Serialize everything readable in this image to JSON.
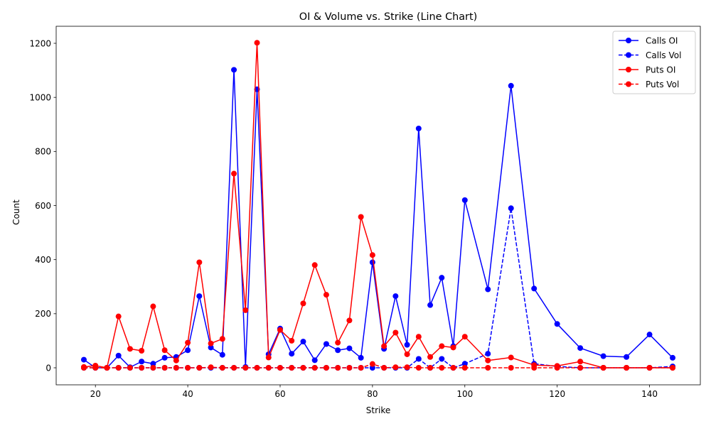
{
  "chart_data": {
    "type": "line",
    "title": "OI & Volume vs. Strike (Line Chart)",
    "xlabel": "Strike",
    "ylabel": "Count",
    "xlim": [
      11.5,
      151
    ],
    "ylim": [
      -63,
      1263
    ],
    "xticks": [
      20,
      40,
      60,
      80,
      100,
      120,
      140
    ],
    "yticks": [
      0,
      200,
      400,
      600,
      800,
      1000,
      1200
    ],
    "grid": false,
    "legend_position": "top-right",
    "x": [
      17.5,
      20,
      22.5,
      25,
      27.5,
      30,
      32.5,
      35,
      37.5,
      40,
      42.5,
      45,
      47.5,
      50,
      52.5,
      55,
      57.5,
      60,
      62.5,
      65,
      67.5,
      70,
      72.5,
      75,
      77.5,
      80,
      82.5,
      85,
      87.5,
      90,
      92.5,
      95,
      97.5,
      100,
      105,
      110,
      115,
      120,
      125,
      130,
      135,
      140,
      145
    ],
    "series": [
      {
        "name": "Calls OI",
        "color": "#0000ff",
        "linestyle": "solid",
        "values": [
          30,
          0,
          0,
          45,
          2,
          23,
          15,
          37,
          40,
          65,
          265,
          75,
          48,
          1102,
          3,
          1030,
          50,
          145,
          52,
          97,
          28,
          88,
          65,
          72,
          37,
          390,
          70,
          265,
          85,
          885,
          232,
          333,
          80,
          620,
          290,
          1043,
          293,
          162,
          73,
          43,
          40,
          123,
          37
        ]
      },
      {
        "name": "Calls Vol",
        "color": "#0000ff",
        "linestyle": "dashed",
        "values": [
          0,
          0,
          0,
          0,
          0,
          0,
          0,
          0,
          0,
          0,
          0,
          0,
          0,
          0,
          0,
          0,
          0,
          0,
          0,
          0,
          0,
          0,
          0,
          0,
          0,
          0,
          0,
          0,
          0,
          33,
          0,
          33,
          0,
          15,
          52,
          590,
          15,
          5,
          0,
          0,
          0,
          0,
          5
        ]
      },
      {
        "name": "Puts OI",
        "color": "#ff0000",
        "linestyle": "solid",
        "values": [
          3,
          8,
          0,
          190,
          70,
          63,
          227,
          65,
          27,
          93,
          390,
          90,
          107,
          718,
          213,
          1202,
          38,
          140,
          100,
          238,
          380,
          270,
          93,
          175,
          558,
          417,
          80,
          130,
          50,
          115,
          40,
          80,
          75,
          115,
          27,
          38,
          10,
          7,
          23,
          0,
          0,
          0,
          0
        ]
      },
      {
        "name": "Puts Vol",
        "color": "#ff0000",
        "linestyle": "dashed",
        "values": [
          0,
          0,
          0,
          0,
          0,
          0,
          0,
          0,
          0,
          0,
          0,
          2,
          0,
          0,
          0,
          0,
          0,
          0,
          0,
          0,
          0,
          0,
          0,
          0,
          0,
          14,
          0,
          2,
          2,
          0,
          0,
          0,
          0,
          0,
          0,
          0,
          0,
          0,
          0,
          0,
          0,
          0,
          0
        ]
      }
    ]
  }
}
